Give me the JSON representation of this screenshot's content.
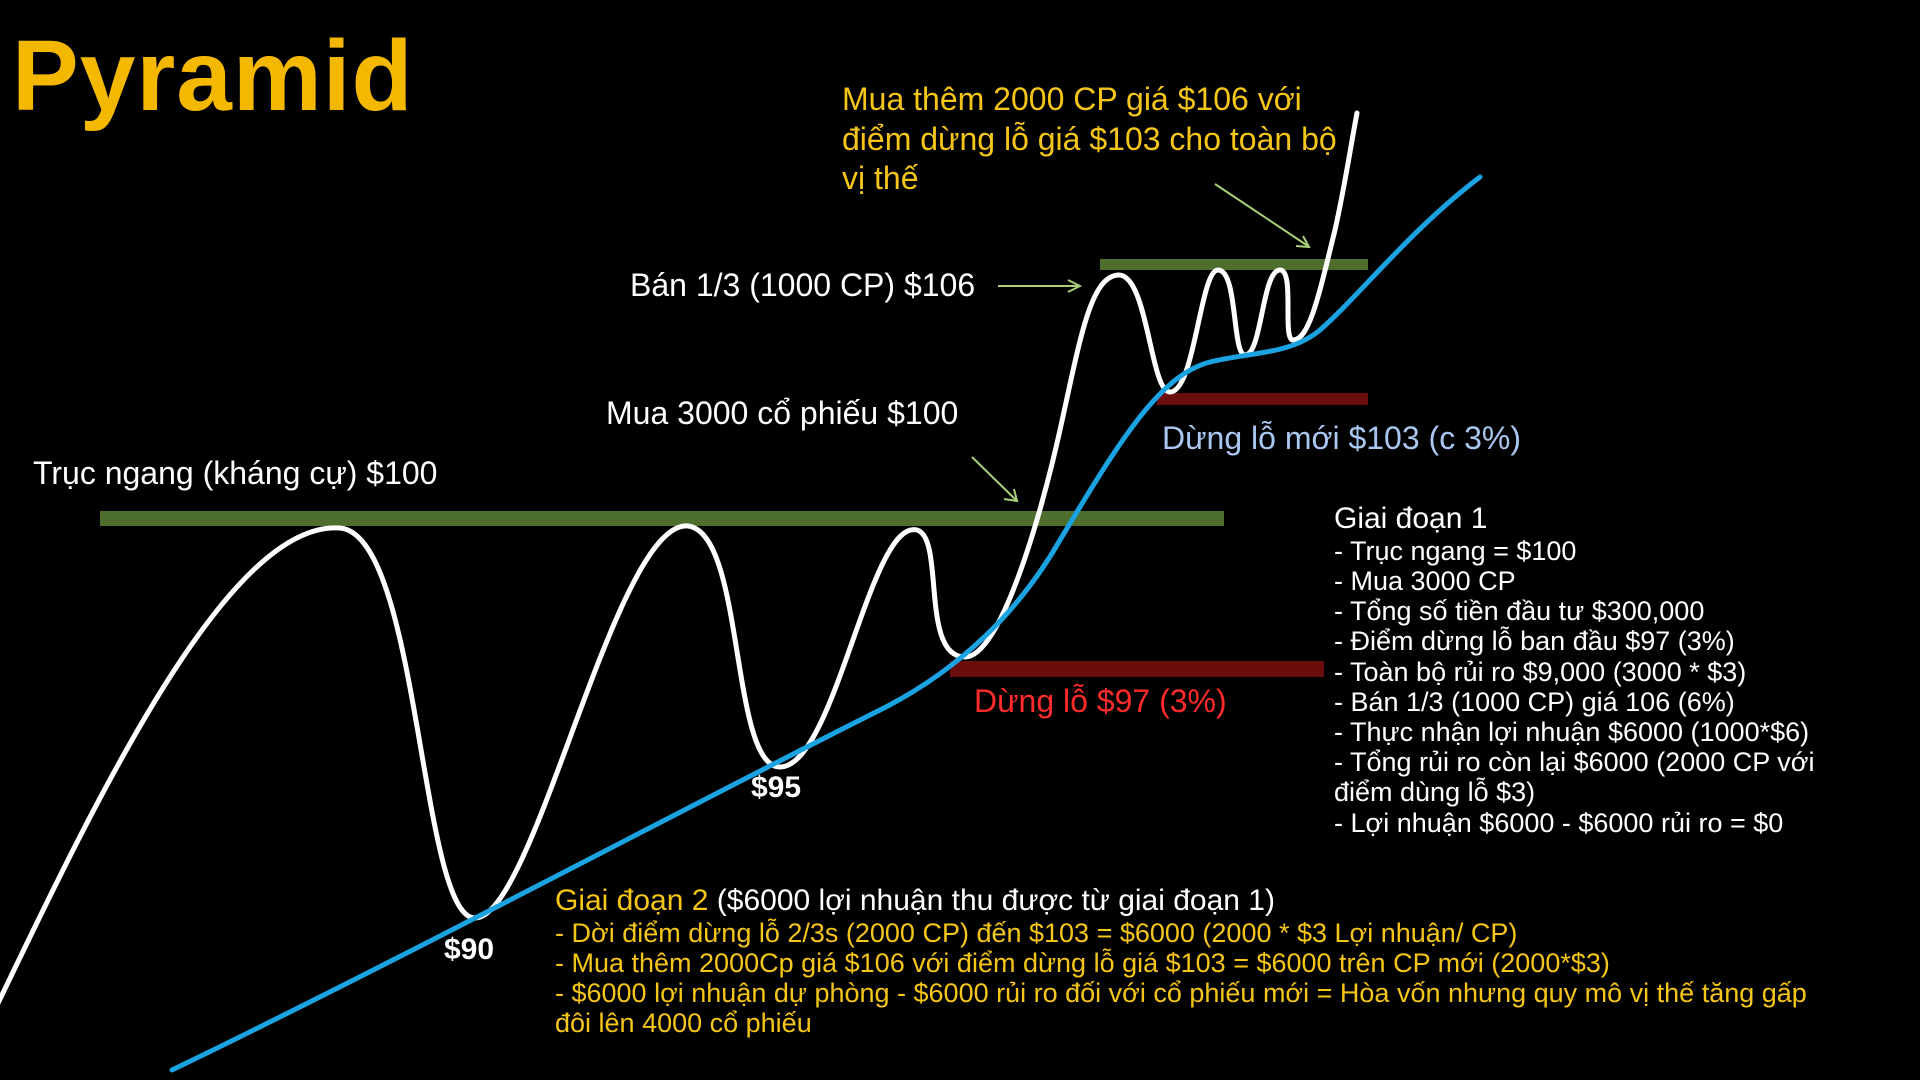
{
  "title": "Pyramid",
  "colors": {
    "title": "#f5b800",
    "resistance_line": "#4e6e2d",
    "stop_line": "#6b0d0d",
    "price_curve": "#ffffff",
    "trend_curve": "#1aa3e0",
    "highlight_text": "#f5c518",
    "stop_text": "#ff2a2a",
    "new_stop_text": "#a9c7f0"
  },
  "annotations": {
    "resistance": "Trục ngang (kháng cự) $100",
    "buy_initial": "Mua 3000 cổ phiếu $100",
    "sell_third": "Bán 1/3 (1000 CP) $106",
    "buy_more_line1": "Mua thêm 2000 CP giá $106 với",
    "buy_more_line2": "điểm dừng lỗ giá $103 cho toàn bộ",
    "buy_more_line3": "vị thế",
    "stop_initial": "Dừng lỗ $97 (3%)",
    "stop_new": "Dừng lỗ mới $103 (c 3%)"
  },
  "price_labels": {
    "low1": "$90",
    "low2": "$95"
  },
  "phase1": {
    "heading": "Giai đoạn 1",
    "items": [
      "- Trục ngang = $100",
      "- Mua 3000 CP",
      "- Tổng số tiền đầu tư $300,000",
      "- Điểm dừng lỗ ban đầu $97 (3%)",
      "- Toàn bộ rủi ro $9,000 (3000 * $3)",
      "- Bán 1/3 (1000 CP) giá 106 (6%)",
      "- Thực nhận lợi nhuận $6000 (1000*$6)",
      "- Tổng rủi ro còn lại $6000 (2000 CP với",
      "điểm dùng lỗ $3)",
      "- Lợi nhuận $6000 - $6000 rủi ro = $0"
    ]
  },
  "phase2": {
    "heading_colored": "Giai đoạn 2",
    "heading_rest": " ($6000 lợi nhuận thu được từ giai đoạn 1)",
    "items": [
      "- Dời điểm dừng lỗ 2/3s (2000 CP) đến $103 = $6000 (2000 * $3 Lợi nhuận/ CP)",
      "- Mua thêm 2000Cp giá $106 với điểm dừng lỗ giá $103 = $6000 trên CP mới (2000*$3)",
      "- $6000 lợi nhuận dự phòng - $6000 rủi ro đối với cổ phiếu mới = Hòa vốn nhưng quy mô vị thế tăng gấp",
      "đôi lên 4000 cổ phiếu"
    ]
  }
}
